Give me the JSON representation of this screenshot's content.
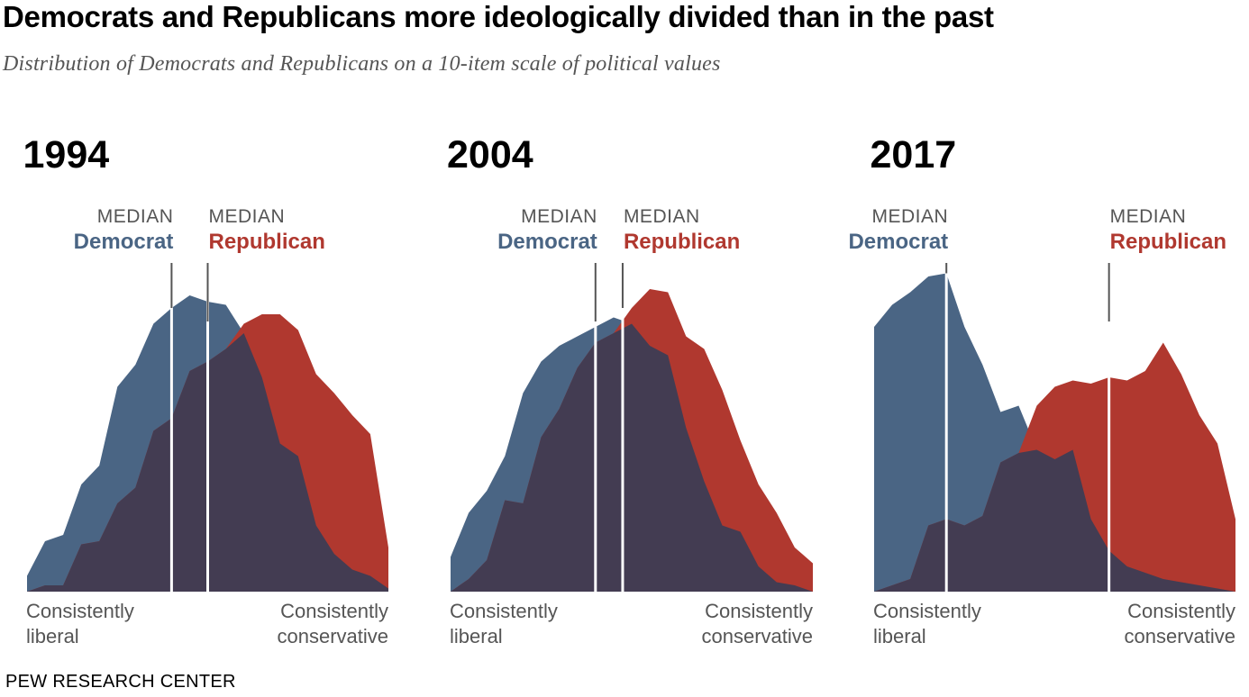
{
  "title": "Democrats and Republicans more ideologically divided than in the past",
  "subtitle": "Distribution of Democrats and Republicans on a 10-item scale of political values",
  "source": "PEW RESEARCH CENTER",
  "colors": {
    "democrat": "#4a6584",
    "republican": "#b0382f",
    "overlap": "#433c52",
    "median_line": "#ffffff",
    "connector": "#555555"
  },
  "labels": {
    "median": "MEDIAN",
    "democrat": "Democrat",
    "republican": "Republican",
    "left_line1": "Consistently",
    "left_line2": "liberal",
    "right_line1": "Consistently",
    "right_line2": "conservative"
  },
  "chart_data": [
    {
      "type": "area",
      "title": "1994",
      "x": [
        -10,
        -9,
        -8,
        -7,
        -6,
        -5,
        -4,
        -3,
        -2,
        -1,
        0,
        1,
        2,
        3,
        4,
        5,
        6,
        7,
        8,
        9,
        10
      ],
      "ylim": [
        0,
        1
      ],
      "series": [
        {
          "name": "Democrat",
          "values": [
            0.05,
            0.16,
            0.18,
            0.34,
            0.4,
            0.65,
            0.72,
            0.85,
            0.9,
            0.94,
            0.92,
            0.91,
            0.82,
            0.68,
            0.47,
            0.43,
            0.21,
            0.12,
            0.07,
            0.05,
            0.01
          ]
        },
        {
          "name": "Republican",
          "values": [
            0.0,
            0.02,
            0.02,
            0.15,
            0.16,
            0.28,
            0.33,
            0.51,
            0.55,
            0.7,
            0.73,
            0.77,
            0.85,
            0.88,
            0.88,
            0.83,
            0.69,
            0.63,
            0.56,
            0.5,
            0.14
          ]
        }
      ],
      "median_democrat": -2.0,
      "median_republican": 0.0
    },
    {
      "type": "area",
      "title": "2004",
      "x": [
        -10,
        -9,
        -8,
        -7,
        -6,
        -5,
        -4,
        -3,
        -2,
        -1,
        0,
        1,
        2,
        3,
        4,
        5,
        6,
        7,
        8,
        9,
        10
      ],
      "ylim": [
        0,
        1
      ],
      "series": [
        {
          "name": "Democrat",
          "values": [
            0.11,
            0.25,
            0.32,
            0.43,
            0.63,
            0.73,
            0.78,
            0.81,
            0.84,
            0.87,
            0.85,
            0.78,
            0.75,
            0.52,
            0.35,
            0.21,
            0.19,
            0.08,
            0.03,
            0.02,
            0.0
          ]
        },
        {
          "name": "Republican",
          "values": [
            0.0,
            0.04,
            0.1,
            0.29,
            0.28,
            0.49,
            0.58,
            0.71,
            0.79,
            0.82,
            0.9,
            0.96,
            0.95,
            0.81,
            0.77,
            0.64,
            0.48,
            0.34,
            0.25,
            0.14,
            0.09
          ]
        }
      ],
      "median_democrat": -2.0,
      "median_republican": -0.5
    },
    {
      "type": "area",
      "title": "2017",
      "x": [
        -10,
        -9,
        -8,
        -7,
        -6,
        -5,
        -4,
        -3,
        -2,
        -1,
        0,
        1,
        2,
        3,
        4,
        5,
        6,
        7,
        8,
        9,
        10
      ],
      "ylim": [
        0,
        1
      ],
      "series": [
        {
          "name": "Democrat",
          "values": [
            0.84,
            0.91,
            0.95,
            1.0,
            1.01,
            0.84,
            0.72,
            0.57,
            0.59,
            0.45,
            0.42,
            0.45,
            0.23,
            0.13,
            0.08,
            0.06,
            0.04,
            0.03,
            0.02,
            0.01,
            0.0
          ]
        },
        {
          "name": "Republican",
          "values": [
            0.0,
            0.02,
            0.04,
            0.21,
            0.23,
            0.21,
            0.24,
            0.41,
            0.44,
            0.59,
            0.65,
            0.67,
            0.66,
            0.68,
            0.67,
            0.7,
            0.79,
            0.69,
            0.56,
            0.47,
            0.23
          ]
        }
      ],
      "median_democrat": -6.0,
      "median_republican": 3.0
    }
  ]
}
